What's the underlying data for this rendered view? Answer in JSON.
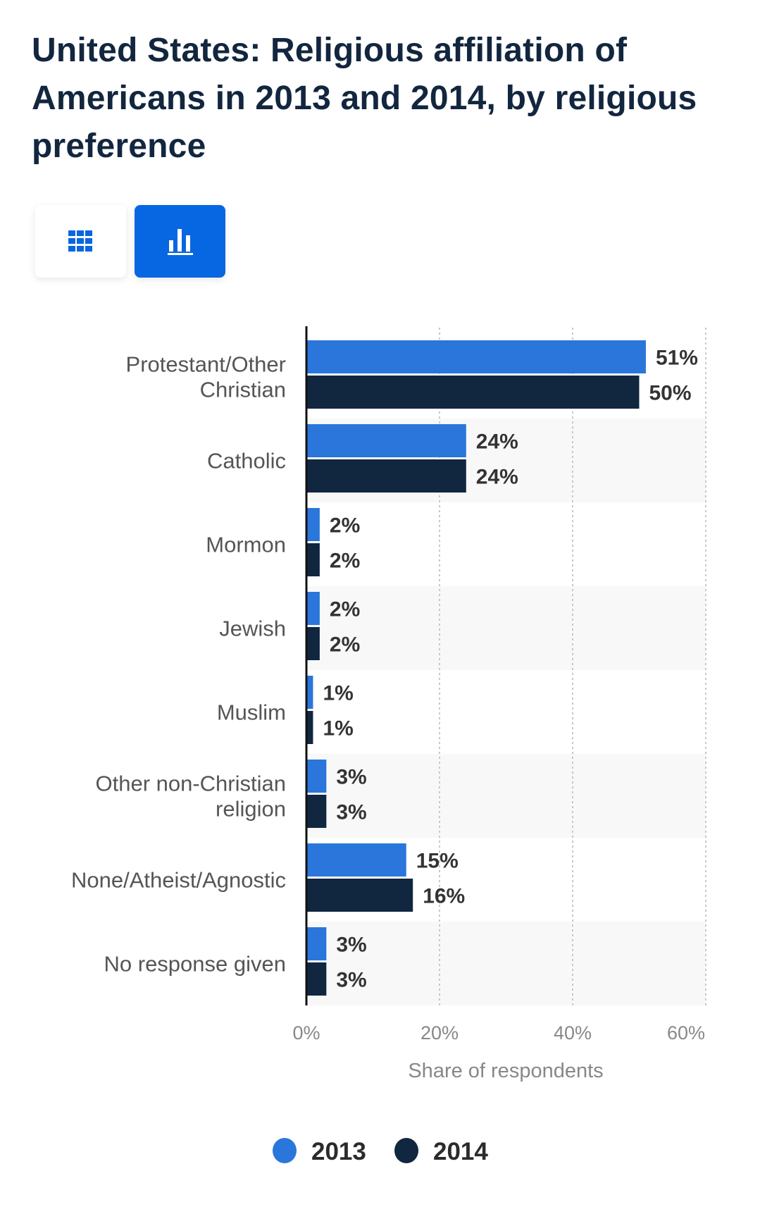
{
  "title": "United States: Religious affiliation of Americans in 2013 and 2014, by religious preference",
  "view_toggle": {
    "table_icon": "grid-icon",
    "chart_icon": "bar-chart-icon",
    "active": "chart"
  },
  "colors": {
    "series_2013": "#2a76db",
    "series_2014": "#11263f",
    "accent": "#0766e1"
  },
  "chart_data": {
    "type": "bar",
    "orientation": "horizontal",
    "title": "United States: Religious affiliation of Americans in 2013 and 2014, by religious preference",
    "categories": [
      [
        "Protestant/Other",
        "Christian"
      ],
      [
        "Catholic"
      ],
      [
        "Mormon"
      ],
      [
        "Jewish"
      ],
      [
        "Muslim"
      ],
      [
        "Other non-Christian",
        "religion"
      ],
      [
        "None/Atheist/Agnostic"
      ],
      [
        "No response given"
      ]
    ],
    "series": [
      {
        "name": "2013",
        "values": [
          51,
          24,
          2,
          2,
          1,
          3,
          15,
          3
        ],
        "labels": [
          "51%",
          "24%",
          "2%",
          "2%",
          "1%",
          "3%",
          "15%",
          "3%"
        ]
      },
      {
        "name": "2014",
        "values": [
          50,
          24,
          2,
          2,
          1,
          3,
          16,
          3
        ],
        "labels": [
          "50%",
          "24%",
          "2%",
          "2%",
          "1%",
          "3%",
          "16%",
          "3%"
        ]
      }
    ],
    "xlabel": "Share of respondents",
    "ylabel": "",
    "xlim": [
      0,
      60
    ],
    "xticks": [
      0,
      20,
      40,
      60
    ],
    "xtick_labels": [
      "0%",
      "20%",
      "40%",
      "60%"
    ],
    "grid": true,
    "legend": {
      "position": "bottom",
      "entries": [
        "2013",
        "2014"
      ]
    }
  }
}
